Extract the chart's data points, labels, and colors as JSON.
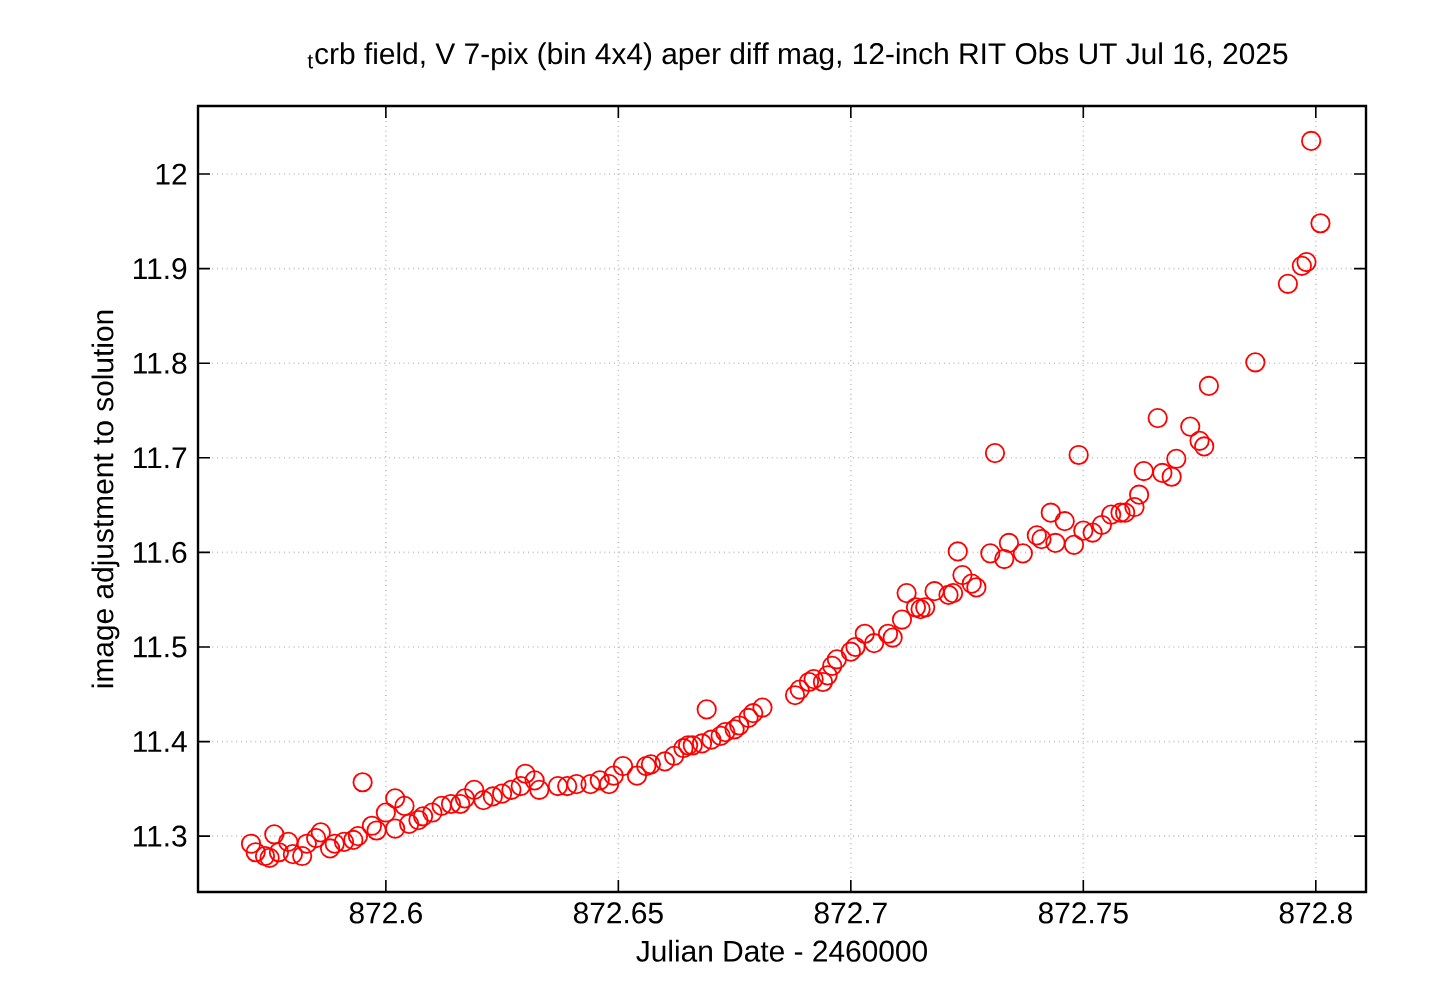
{
  "chart_data": {
    "type": "scatter",
    "title": "$_{t}$crb field, V 7-pix (bin 4x4) aper diff mag,  12-inch RIT Obs UT Jul 16, 2025",
    "xlabel": "Julian Date - 2460000",
    "ylabel": "image adjustment to solution",
    "xlim": [
      872.5596,
      872.8108
    ],
    "ylim": [
      11.241,
      12.072
    ],
    "xticks": [
      872.6,
      872.65,
      872.7,
      872.75,
      872.8
    ],
    "yticks": [
      11.3,
      11.4,
      11.5,
      11.6,
      11.7,
      11.8,
      11.9,
      12
    ],
    "grid": true,
    "marker": "circle",
    "series": [
      {
        "color": "#ff0000",
        "x": [
          872.571,
          872.572,
          872.574,
          872.575,
          872.576,
          872.577,
          872.579,
          872.58,
          872.582,
          872.583,
          872.585,
          872.586,
          872.588,
          872.589,
          872.591,
          872.593,
          872.594,
          872.595,
          872.597,
          872.598,
          872.6,
          872.602,
          872.602,
          872.604,
          872.605,
          872.607,
          872.608,
          872.61,
          872.612,
          872.614,
          872.616,
          872.617,
          872.619,
          872.621,
          872.623,
          872.625,
          872.627,
          872.629,
          872.63,
          872.632,
          872.633,
          872.637,
          872.639,
          872.641,
          872.644,
          872.646,
          872.648,
          872.649,
          872.651,
          872.654,
          872.656,
          872.657,
          872.66,
          872.662,
          872.664,
          872.665,
          872.666,
          872.668,
          872.669,
          872.67,
          872.672,
          872.673,
          872.675,
          872.676,
          872.678,
          872.679,
          872.681,
          872.688,
          872.689,
          872.691,
          872.692,
          872.694,
          872.695,
          872.696,
          872.697,
          872.7,
          872.701,
          872.703,
          872.705,
          872.708,
          872.709,
          872.711,
          872.712,
          872.714,
          872.715,
          872.716,
          872.718,
          872.721,
          872.722,
          872.723,
          872.724,
          872.726,
          872.727,
          872.73,
          872.731,
          872.733,
          872.734,
          872.737,
          872.74,
          872.741,
          872.743,
          872.744,
          872.746,
          872.748,
          872.749,
          872.75,
          872.752,
          872.754,
          872.756,
          872.758,
          872.759,
          872.761,
          872.762,
          872.763,
          872.766,
          872.767,
          872.769,
          872.77,
          872.773,
          872.775,
          872.776,
          872.777,
          872.787,
          872.794,
          872.797,
          872.798,
          872.799,
          872.801
        ],
        "values": [
          11.292,
          11.283,
          11.279,
          11.277,
          11.302,
          11.283,
          11.294,
          11.281,
          11.279,
          11.292,
          11.298,
          11.304,
          11.287,
          11.292,
          11.294,
          11.296,
          11.3,
          11.357,
          11.311,
          11.306,
          11.325,
          11.308,
          11.34,
          11.332,
          11.313,
          11.317,
          11.321,
          11.325,
          11.332,
          11.334,
          11.334,
          11.34,
          11.349,
          11.338,
          11.342,
          11.345,
          11.349,
          11.353,
          11.366,
          11.359,
          11.349,
          11.353,
          11.353,
          11.355,
          11.355,
          11.359,
          11.355,
          11.364,
          11.374,
          11.364,
          11.374,
          11.376,
          11.379,
          11.385,
          11.393,
          11.396,
          11.396,
          11.398,
          11.434,
          11.402,
          11.406,
          11.41,
          11.413,
          11.417,
          11.425,
          11.43,
          11.436,
          11.449,
          11.455,
          11.463,
          11.466,
          11.463,
          11.47,
          11.48,
          11.487,
          11.495,
          11.5,
          11.514,
          11.504,
          11.514,
          11.51,
          11.529,
          11.557,
          11.542,
          11.54,
          11.542,
          11.559,
          11.555,
          11.557,
          11.601,
          11.576,
          11.567,
          11.563,
          11.599,
          11.705,
          11.593,
          11.61,
          11.599,
          11.618,
          11.614,
          11.642,
          11.61,
          11.633,
          11.608,
          11.703,
          11.623,
          11.621,
          11.629,
          11.64,
          11.642,
          11.642,
          11.648,
          11.661,
          11.686,
          11.742,
          11.684,
          11.68,
          11.699,
          11.733,
          11.718,
          11.712,
          11.776,
          11.801,
          11.884,
          11.903,
          11.907,
          12.035,
          11.948
        ]
      }
    ]
  }
}
